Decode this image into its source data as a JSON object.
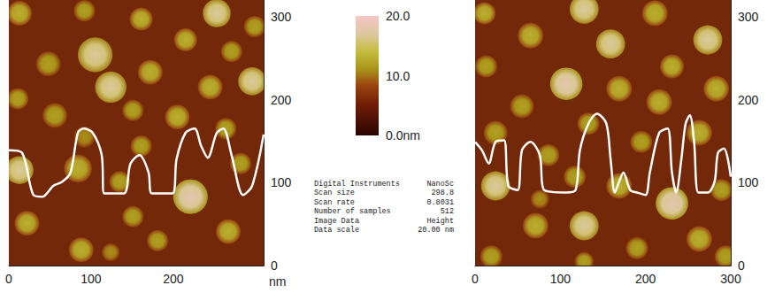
{
  "chart_data": [
    {
      "type": "image",
      "xlim": [
        0,
        310
      ],
      "ylim": [
        0,
        320
      ],
      "xticks": [
        0,
        100,
        200
      ],
      "yticks": [
        0,
        100,
        200,
        300
      ],
      "xlabel": "nm",
      "particles": [
        {
          "x": 13,
          "y": 304,
          "radius": 15,
          "height": 13
        },
        {
          "x": 92,
          "y": 307,
          "radius": 13,
          "height": 12
        },
        {
          "x": 161,
          "y": 297,
          "radius": 14,
          "height": 13
        },
        {
          "x": 253,
          "y": 304,
          "radius": 17,
          "height": 17
        },
        {
          "x": 48,
          "y": 243,
          "radius": 15,
          "height": 12
        },
        {
          "x": 105,
          "y": 254,
          "radius": 21,
          "height": 17
        },
        {
          "x": 215,
          "y": 272,
          "radius": 14,
          "height": 13
        },
        {
          "x": 271,
          "y": 258,
          "radius": 13,
          "height": 12
        },
        {
          "x": 299,
          "y": 288,
          "radius": 13,
          "height": 12
        },
        {
          "x": 172,
          "y": 233,
          "radius": 15,
          "height": 13
        },
        {
          "x": 124,
          "y": 215,
          "radius": 19,
          "height": 17
        },
        {
          "x": 245,
          "y": 215,
          "radius": 15,
          "height": 13
        },
        {
          "x": 296,
          "y": 222,
          "radius": 17,
          "height": 17
        },
        {
          "x": 11,
          "y": 201,
          "radius": 13,
          "height": 12
        },
        {
          "x": 56,
          "y": 181,
          "radius": 15,
          "height": 12
        },
        {
          "x": 151,
          "y": 187,
          "radius": 13,
          "height": 12
        },
        {
          "x": 205,
          "y": 179,
          "radius": 15,
          "height": 13
        },
        {
          "x": 264,
          "y": 165,
          "radius": 13,
          "height": 12
        },
        {
          "x": 92,
          "y": 155,
          "radius": 13,
          "height": 11
        },
        {
          "x": 161,
          "y": 144,
          "radius": 13,
          "height": 12
        },
        {
          "x": 13,
          "y": 115,
          "radius": 17,
          "height": 17
        },
        {
          "x": 84,
          "y": 117,
          "radius": 17,
          "height": 13
        },
        {
          "x": 135,
          "y": 101,
          "radius": 13,
          "height": 12
        },
        {
          "x": 221,
          "y": 83,
          "radius": 21,
          "height": 18
        },
        {
          "x": 282,
          "y": 123,
          "radius": 13,
          "height": 12
        },
        {
          "x": 22,
          "y": 51,
          "radius": 15,
          "height": 13
        },
        {
          "x": 88,
          "y": 19,
          "radius": 15,
          "height": 13
        },
        {
          "x": 151,
          "y": 59,
          "radius": 13,
          "height": 12
        },
        {
          "x": 181,
          "y": 30,
          "radius": 13,
          "height": 12
        },
        {
          "x": 267,
          "y": 41,
          "radius": 15,
          "height": 13
        },
        {
          "x": 124,
          "y": 16,
          "radius": 11,
          "height": 11
        }
      ],
      "profile": {
        "color": "#ffffff",
        "x": [
          0,
          16,
          30,
          41,
          54,
          65,
          75,
          84,
          91,
          102,
          113,
          116,
          140,
          148,
          159,
          170,
          174,
          199,
          204,
          215,
          226,
          234,
          242,
          253,
          261,
          271,
          285,
          296,
          310
        ],
        "y": [
          139,
          136,
          85,
          83,
          96,
          101,
          112,
          160,
          165,
          160,
          133,
          87,
          87,
          123,
          133,
          112,
          87,
          87,
          128,
          160,
          165,
          144,
          130,
          160,
          165,
          133,
          85,
          96,
          158
        ]
      }
    },
    {
      "type": "image",
      "xlim": [
        0,
        300
      ],
      "ylim": [
        0,
        320
      ],
      "xticks": [
        0,
        100,
        200,
        300
      ],
      "yticks": [
        0,
        100,
        200,
        300
      ],
      "particles": [
        {
          "x": 11,
          "y": 304,
          "radius": 13,
          "height": 13
        },
        {
          "x": 65,
          "y": 277,
          "radius": 15,
          "height": 13
        },
        {
          "x": 128,
          "y": 309,
          "radius": 17,
          "height": 17
        },
        {
          "x": 159,
          "y": 267,
          "radius": 17,
          "height": 17
        },
        {
          "x": 211,
          "y": 304,
          "radius": 15,
          "height": 13
        },
        {
          "x": 273,
          "y": 272,
          "radius": 17,
          "height": 17
        },
        {
          "x": 231,
          "y": 240,
          "radius": 14,
          "height": 13
        },
        {
          "x": 13,
          "y": 240,
          "radius": 13,
          "height": 12
        },
        {
          "x": 107,
          "y": 219,
          "radius": 19,
          "height": 18
        },
        {
          "x": 169,
          "y": 213,
          "radius": 15,
          "height": 13
        },
        {
          "x": 283,
          "y": 213,
          "radius": 15,
          "height": 13
        },
        {
          "x": 55,
          "y": 192,
          "radius": 14,
          "height": 12
        },
        {
          "x": 216,
          "y": 197,
          "radius": 15,
          "height": 13
        },
        {
          "x": 133,
          "y": 171,
          "radius": 13,
          "height": 12
        },
        {
          "x": 24,
          "y": 160,
          "radius": 14,
          "height": 12
        },
        {
          "x": 263,
          "y": 160,
          "radius": 15,
          "height": 13
        },
        {
          "x": 195,
          "y": 149,
          "radius": 13,
          "height": 12
        },
        {
          "x": 86,
          "y": 133,
          "radius": 13,
          "height": 12
        },
        {
          "x": 24,
          "y": 96,
          "radius": 17,
          "height": 17
        },
        {
          "x": 117,
          "y": 107,
          "radius": 13,
          "height": 12
        },
        {
          "x": 169,
          "y": 96,
          "radius": 15,
          "height": 13
        },
        {
          "x": 231,
          "y": 75,
          "radius": 19,
          "height": 18
        },
        {
          "x": 289,
          "y": 91,
          "radius": 13,
          "height": 12
        },
        {
          "x": 71,
          "y": 48,
          "radius": 15,
          "height": 13
        },
        {
          "x": 128,
          "y": 48,
          "radius": 17,
          "height": 17
        },
        {
          "x": 190,
          "y": 21,
          "radius": 13,
          "height": 12
        },
        {
          "x": 263,
          "y": 32,
          "radius": 15,
          "height": 13
        },
        {
          "x": 19,
          "y": 11,
          "radius": 13,
          "height": 12
        },
        {
          "x": 128,
          "y": 5,
          "radius": 11,
          "height": 12
        },
        {
          "x": 294,
          "y": 11,
          "radius": 13,
          "height": 12
        },
        {
          "x": 76,
          "y": 80,
          "radius": 11,
          "height": 11
        }
      ],
      "profile": {
        "color": "#ffffff",
        "x": [
          0,
          8,
          16,
          24,
          34,
          39,
          50,
          55,
          65,
          76,
          81,
          107,
          118,
          123,
          133,
          143,
          154,
          159,
          164,
          169,
          174,
          182,
          190,
          200,
          205,
          216,
          226,
          231,
          236,
          242,
          247,
          252,
          257,
          262,
          273,
          281,
          285,
          292,
          300
        ],
        "y": [
          149,
          139,
          123,
          149,
          151,
          96,
          91,
          139,
          149,
          133,
          91,
          88,
          91,
          139,
          171,
          183,
          171,
          128,
          88,
          101,
          112,
          91,
          88,
          85,
          112,
          160,
          165,
          112,
          88,
          128,
          171,
          181,
          149,
          88,
          88,
          101,
          136,
          141,
          107
        ]
      }
    }
  ],
  "colorbar": {
    "range": [
      0,
      20
    ],
    "ticks": [
      {
        "value": 0,
        "label": "0.0nm"
      },
      {
        "value": 10,
        "label": "10.0"
      },
      {
        "value": 20,
        "label": "20.0"
      }
    ]
  },
  "info": [
    [
      "Digital Instruments",
      "NanoSc"
    ],
    [
      "Scan size",
      "298.8"
    ],
    [
      "Scan rate",
      "0.8031"
    ],
    [
      "Number of samples",
      "512"
    ],
    [
      "Image Data",
      "Height"
    ],
    [
      "Data scale",
      "20.00 nm"
    ]
  ]
}
